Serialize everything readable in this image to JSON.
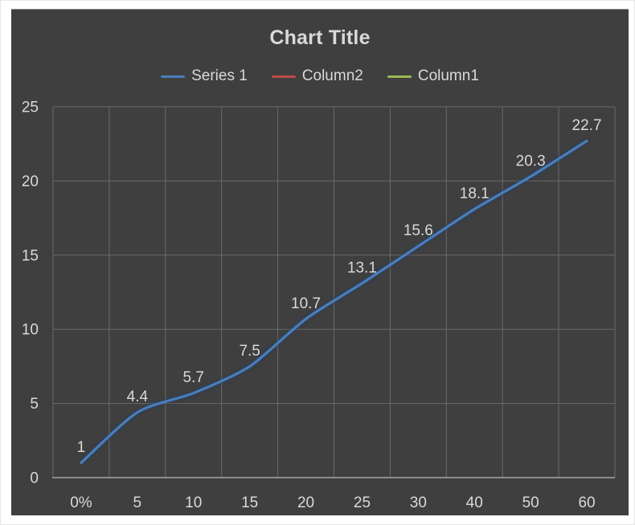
{
  "chart_data": {
    "type": "line",
    "title": "Chart Title",
    "categories": [
      "0%",
      "5",
      "10",
      "15",
      "20",
      "25",
      "30",
      "40",
      "50",
      "60"
    ],
    "series": [
      {
        "name": "Series 1",
        "color": "#4A7EBB",
        "values": [
          1,
          4.4,
          5.7,
          7.5,
          10.7,
          13.1,
          15.6,
          18.1,
          20.3,
          22.7
        ],
        "labels": [
          "1",
          "4.4",
          "5.7",
          "7.5",
          "10.7",
          "13.1",
          "15.6",
          "18.1",
          "20.3",
          "22.7"
        ]
      },
      {
        "name": "Column2",
        "color": "#BE4B48",
        "values": []
      },
      {
        "name": "Column1",
        "color": "#98B954",
        "values": []
      }
    ],
    "ylim": [
      0,
      25
    ],
    "yticks": [
      0,
      5,
      10,
      15,
      20,
      25
    ],
    "grid": true,
    "data_labels": true,
    "legend_position": "top",
    "colors": {
      "page_background": "#FFFFFF",
      "chart_background": "#3F3F3F",
      "gridline": "#6A6A6A",
      "axis_line": "#8C8C8C",
      "text": "#D9D9D9",
      "glow": "#1C3E6E"
    }
  }
}
